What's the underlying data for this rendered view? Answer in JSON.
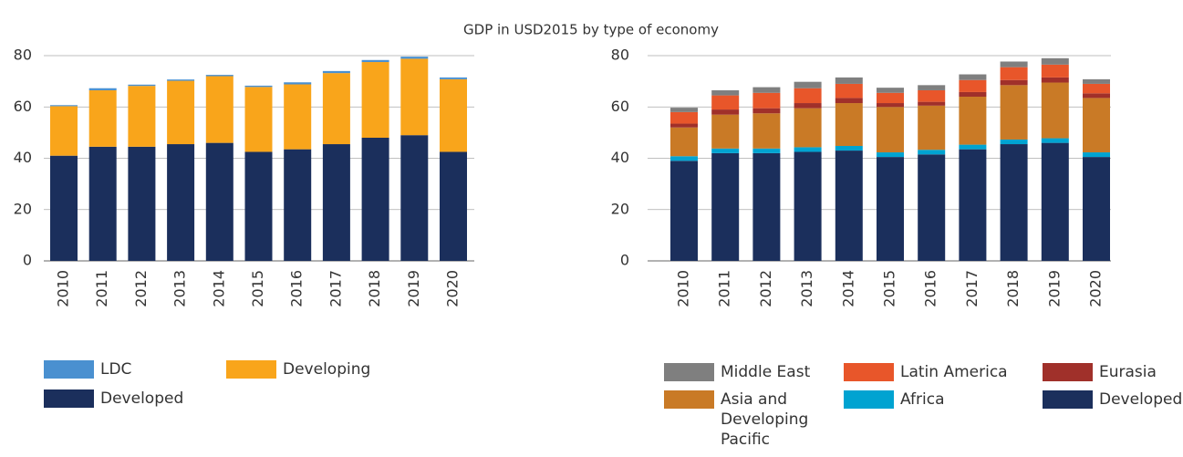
{
  "title": "GDP in USD2015 by type of economy",
  "chart_data": [
    {
      "type": "stacked_bar",
      "categories": [
        "2010",
        "2011",
        "2012",
        "2013",
        "2014",
        "2015",
        "2016",
        "2017",
        "2018",
        "2019",
        "2020"
      ],
      "series": [
        {
          "name": "LDC",
          "color": "#4a90d0",
          "values": [
            0.4,
            0.8,
            0.5,
            0.5,
            0.5,
            0.5,
            0.8,
            0.8,
            0.8,
            0.8,
            0.7
          ]
        },
        {
          "name": "Developing",
          "color": "#f9a51b",
          "values": [
            19.3,
            22,
            23.7,
            24.7,
            26,
            25.3,
            25.3,
            27.7,
            29.5,
            29.8,
            28.3
          ]
        },
        {
          "name": "Developed",
          "color": "#1b2f5c",
          "values": [
            41,
            44.5,
            44.5,
            45.5,
            46,
            42.5,
            43.5,
            45.5,
            48,
            49,
            42.5
          ]
        }
      ],
      "ylim": [
        0,
        80
      ],
      "yticks": [
        0,
        20,
        40,
        60,
        80
      ],
      "grid": true
    },
    {
      "type": "stacked_bar",
      "categories": [
        "2010",
        "2011",
        "2012",
        "2013",
        "2014",
        "2015",
        "2016",
        "2017",
        "2018",
        "2019",
        "2020"
      ],
      "series": [
        {
          "name": "Middle East",
          "color": "#7f7f7f",
          "values": [
            1.7,
            2,
            2.2,
            2.5,
            2.5,
            2,
            2,
            2.2,
            2.2,
            2.5,
            1.8
          ]
        },
        {
          "name": "Latin America",
          "color": "#e8562a",
          "values": [
            4.5,
            5.5,
            6,
            5.8,
            5.5,
            4,
            4.5,
            4.7,
            5,
            5,
            3.7
          ]
        },
        {
          "name": "Eurasia",
          "color": "#a0302a",
          "values": [
            1.5,
            2,
            2,
            2,
            2,
            1.5,
            1.5,
            1.8,
            2,
            2,
            1.8
          ]
        },
        {
          "name": "Asia and Developing Pacific",
          "color": "#c97a26",
          "values": [
            11.2,
            13.2,
            13.7,
            15.2,
            16.7,
            17.7,
            17.2,
            18.7,
            21.2,
            21.7,
            21.2
          ]
        },
        {
          "name": "Africa",
          "color": "#00a3d1",
          "values": [
            1.8,
            1.8,
            1.8,
            1.8,
            1.8,
            1.8,
            1.8,
            1.8,
            1.8,
            1.8,
            1.8
          ]
        },
        {
          "name": "Developed",
          "color": "#1b2f5c",
          "values": [
            39,
            42,
            42,
            42.5,
            43,
            40.5,
            41.5,
            43.5,
            45.5,
            46,
            40.5
          ]
        }
      ],
      "ylim": [
        0,
        80
      ],
      "yticks": [
        0,
        20,
        40,
        60,
        80
      ],
      "grid": true
    }
  ]
}
